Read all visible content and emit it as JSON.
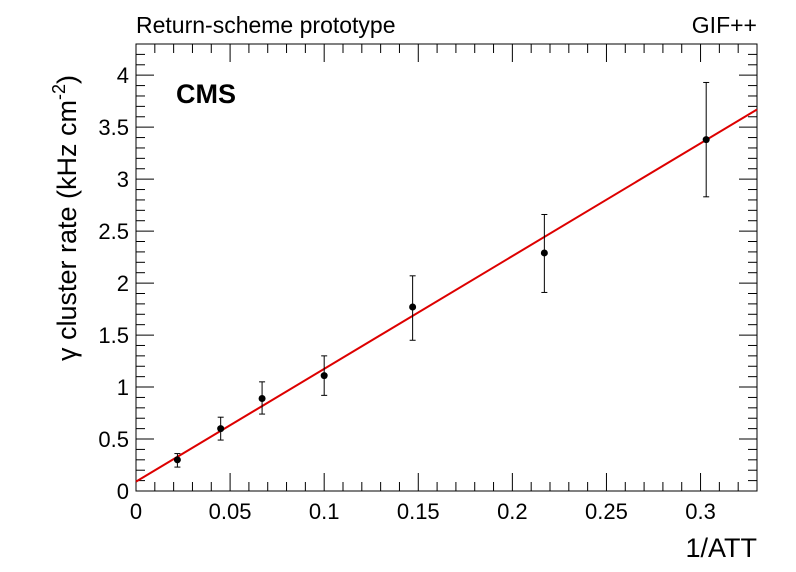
{
  "header": {
    "left_text": "Return-scheme prototype",
    "right_text": "GIF++",
    "experiment_label": "CMS"
  },
  "chart_data": {
    "type": "scatter",
    "xlabel": "1/ATT",
    "ylabel_prefix": "γ cluster rate (kHz cm",
    "ylabel_exponent": "-2",
    "ylabel_suffix": ")",
    "xlim": [
      0,
      0.33
    ],
    "ylim": [
      0,
      4.3
    ],
    "x_ticks": [
      0,
      0.05,
      0.1,
      0.15,
      0.2,
      0.25,
      0.3
    ],
    "x_tick_labels": [
      "0",
      "0.05",
      "0.1",
      "0.15",
      "0.2",
      "0.25",
      "0.3"
    ],
    "y_ticks": [
      0,
      0.5,
      1,
      1.5,
      2,
      2.5,
      3,
      3.5,
      4
    ],
    "y_tick_labels": [
      "0",
      "0.5",
      "1",
      "1.5",
      "2",
      "2.5",
      "3",
      "3.5",
      "4"
    ],
    "grid": false,
    "points": [
      {
        "x": 0.022,
        "y": 0.3,
        "err_low": 0.07,
        "err_high": 0.06
      },
      {
        "x": 0.045,
        "y": 0.6,
        "err_low": 0.11,
        "err_high": 0.11
      },
      {
        "x": 0.067,
        "y": 0.89,
        "err_low": 0.15,
        "err_high": 0.16
      },
      {
        "x": 0.1,
        "y": 1.11,
        "err_low": 0.19,
        "err_high": 0.19
      },
      {
        "x": 0.147,
        "y": 1.77,
        "err_low": 0.32,
        "err_high": 0.3
      },
      {
        "x": 0.217,
        "y": 2.29,
        "err_low": 0.38,
        "err_high": 0.37
      },
      {
        "x": 0.303,
        "y": 3.38,
        "err_low": 0.55,
        "err_high": 0.55
      }
    ],
    "fit_line": {
      "x": [
        0,
        0.33
      ],
      "y": [
        0.09,
        3.67
      ],
      "color": "#dd0000"
    },
    "marker_color": "#000000"
  }
}
